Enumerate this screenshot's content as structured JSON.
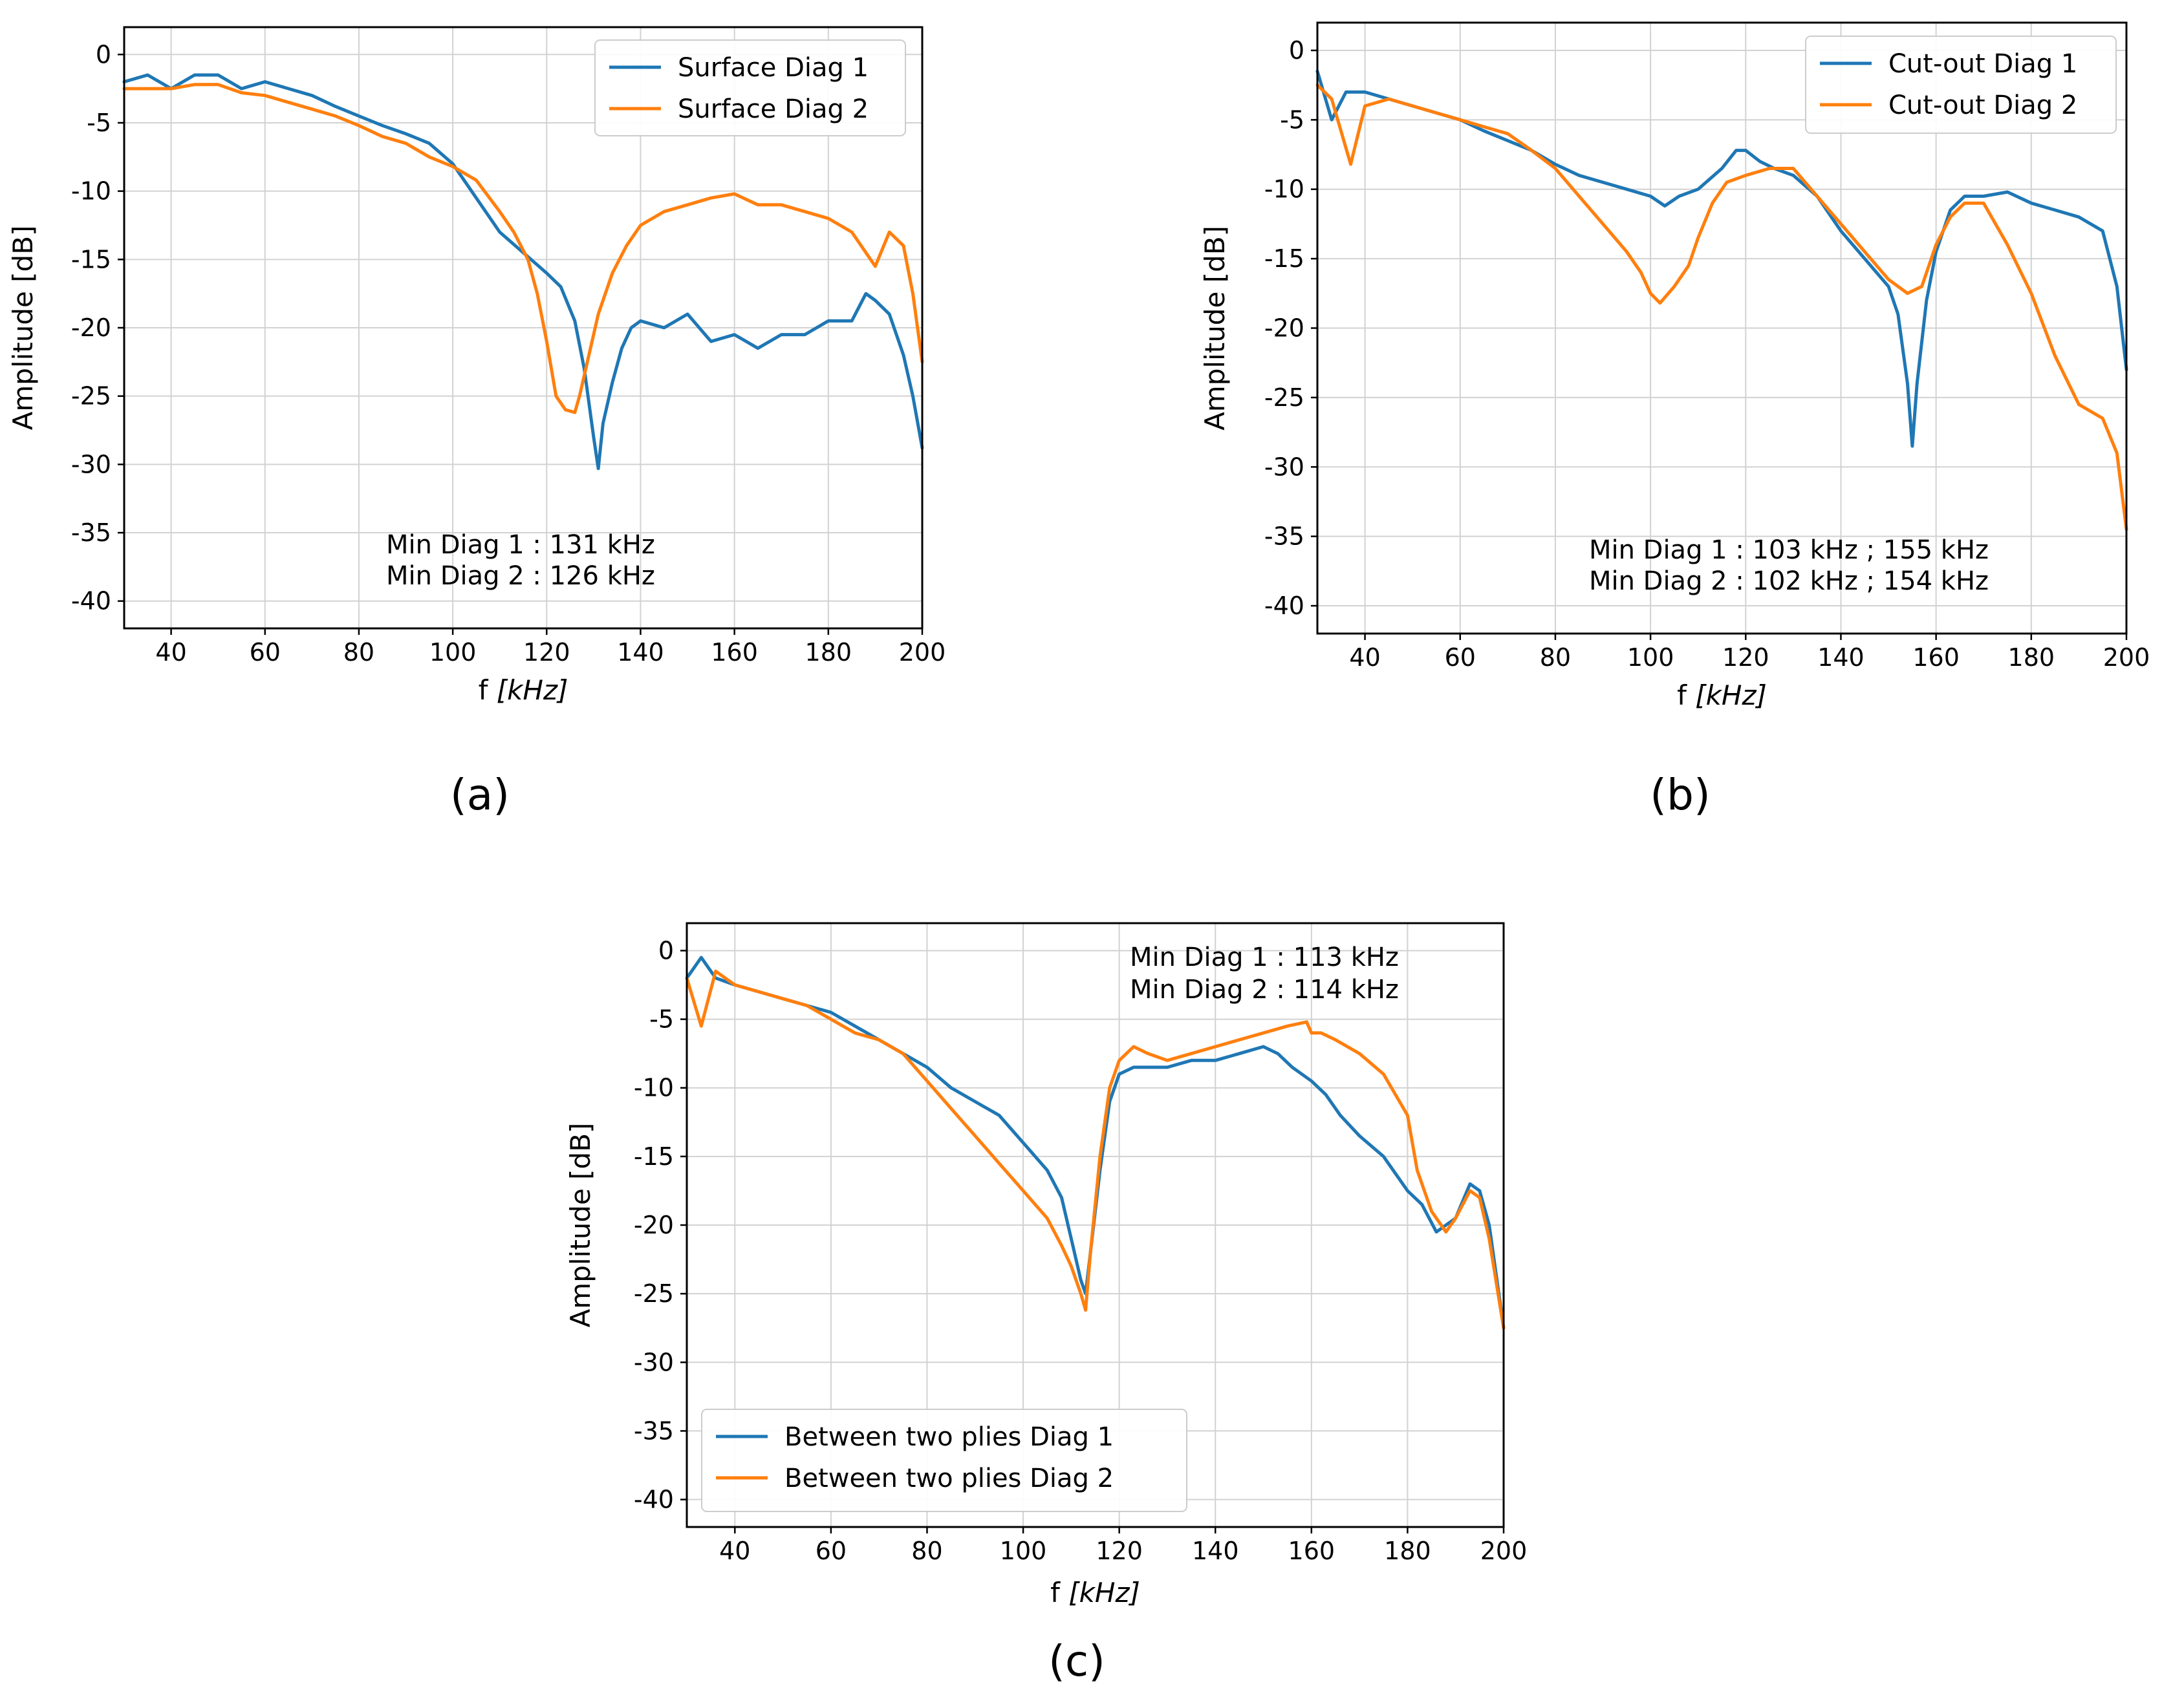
{
  "chart_data": [
    {
      "panel": "a",
      "caption_label": "(a)",
      "type": "line",
      "xlabel_prefix": "f ",
      "xlabel_unit": "[kHz]",
      "ylabel": "Amplitude [dB]",
      "xlim": [
        30,
        200
      ],
      "ylim": [
        -42,
        2
      ],
      "xticks": [
        40,
        60,
        80,
        100,
        120,
        140,
        160,
        180,
        200
      ],
      "yticks": [
        0,
        -5,
        -10,
        -15,
        -20,
        -25,
        -30,
        -35,
        -40
      ],
      "grid": true,
      "legend_position": "top-right",
      "annotations": [
        "Min Diag 1 : 131 kHz",
        "Min Diag 2 : 126 kHz"
      ],
      "series": [
        {
          "name": "Surface Diag 1",
          "color": "#1f77b4",
          "x": [
            30,
            35,
            40,
            45,
            50,
            55,
            60,
            65,
            70,
            75,
            80,
            85,
            90,
            95,
            100,
            103,
            106,
            110,
            115,
            120,
            123,
            126,
            128,
            130,
            131,
            132,
            134,
            136,
            138,
            140,
            145,
            150,
            155,
            160,
            165,
            170,
            175,
            180,
            185,
            188,
            190,
            193,
            196,
            198,
            200
          ],
          "y": [
            -2,
            -1.5,
            -2.5,
            -1.5,
            -1.5,
            -2.5,
            -2,
            -2.5,
            -3,
            -3.8,
            -4.5,
            -5.2,
            -5.8,
            -6.5,
            -8,
            -9.5,
            -11,
            -13,
            -14.5,
            -16,
            -17,
            -19.5,
            -23,
            -28,
            -30.3,
            -27,
            -24,
            -21.5,
            -20,
            -19.5,
            -20,
            -19,
            -21,
            -20.5,
            -21.5,
            -20.5,
            -20.5,
            -19.5,
            -19.5,
            -17.5,
            -18,
            -19,
            -22,
            -25,
            -28.8
          ]
        },
        {
          "name": "Surface Diag 2",
          "color": "#ff7f0e",
          "x": [
            30,
            35,
            40,
            45,
            50,
            55,
            60,
            65,
            70,
            75,
            80,
            85,
            90,
            95,
            100,
            105,
            110,
            113,
            116,
            118,
            120,
            122,
            124,
            126,
            127,
            129,
            131,
            134,
            137,
            140,
            145,
            150,
            155,
            160,
            165,
            170,
            175,
            180,
            185,
            188,
            190,
            193,
            196,
            198,
            200
          ],
          "y": [
            -2.5,
            -2.5,
            -2.5,
            -2.2,
            -2.2,
            -2.8,
            -3,
            -3.5,
            -4,
            -4.5,
            -5.2,
            -6,
            -6.5,
            -7.5,
            -8.2,
            -9.2,
            -11.5,
            -13,
            -15,
            -17.5,
            -21,
            -25,
            -26,
            -26.2,
            -25,
            -22,
            -19,
            -16,
            -14,
            -12.5,
            -11.5,
            -11,
            -10.5,
            -10.2,
            -11,
            -11,
            -11.5,
            -12,
            -13,
            -14.5,
            -15.5,
            -13,
            -14,
            -17.5,
            -22.5
          ]
        }
      ]
    },
    {
      "panel": "b",
      "caption_label": "(b)",
      "type": "line",
      "xlabel_prefix": "f ",
      "xlabel_unit": "[kHz]",
      "ylabel": "Amplitude [dB]",
      "xlim": [
        30,
        200
      ],
      "ylim": [
        -42,
        2
      ],
      "xticks": [
        40,
        60,
        80,
        100,
        120,
        140,
        160,
        180,
        200
      ],
      "yticks": [
        0,
        -5,
        -10,
        -15,
        -20,
        -25,
        -30,
        -35,
        -40
      ],
      "grid": true,
      "legend_position": "top-right",
      "annotations": [
        "Min Diag 1 : 103 kHz ; 155 kHz",
        "Min Diag 2 : 102 kHz ; 154 kHz"
      ],
      "series": [
        {
          "name": "Cut-out Diag 1",
          "color": "#1f77b4",
          "x": [
            30,
            33,
            36,
            40,
            45,
            50,
            55,
            60,
            65,
            70,
            75,
            80,
            85,
            90,
            95,
            100,
            103,
            106,
            110,
            115,
            118,
            120,
            123,
            126,
            130,
            135,
            140,
            145,
            150,
            152,
            154,
            155,
            156,
            158,
            160,
            163,
            166,
            170,
            175,
            180,
            185,
            190,
            195,
            198,
            200
          ],
          "y": [
            -1.5,
            -5,
            -3,
            -3,
            -3.5,
            -4,
            -4.5,
            -5,
            -5.8,
            -6.5,
            -7.2,
            -8.2,
            -9,
            -9.5,
            -10,
            -10.5,
            -11.2,
            -10.5,
            -10,
            -8.5,
            -7.2,
            -7.2,
            -8,
            -8.5,
            -9,
            -10.5,
            -13,
            -15,
            -17,
            -19,
            -24,
            -28.5,
            -24,
            -18,
            -14.5,
            -11.5,
            -10.5,
            -10.5,
            -10.2,
            -11,
            -11.5,
            -12,
            -13,
            -17,
            -23
          ]
        },
        {
          "name": "Cut-out Diag 2",
          "color": "#ff7f0e",
          "x": [
            30,
            33,
            37,
            40,
            45,
            50,
            55,
            60,
            65,
            70,
            75,
            80,
            85,
            90,
            95,
            98,
            100,
            102,
            105,
            108,
            110,
            113,
            116,
            120,
            125,
            130,
            135,
            140,
            145,
            150,
            154,
            157,
            160,
            163,
            166,
            170,
            175,
            180,
            185,
            190,
            195,
            198,
            200
          ],
          "y": [
            -2.5,
            -3.5,
            -8.2,
            -4,
            -3.5,
            -4,
            -4.5,
            -5,
            -5.5,
            -6,
            -7.2,
            -8.5,
            -10.5,
            -12.5,
            -14.5,
            -16,
            -17.5,
            -18.2,
            -17,
            -15.5,
            -13.5,
            -11,
            -9.5,
            -9,
            -8.5,
            -8.5,
            -10.5,
            -12.5,
            -14.5,
            -16.5,
            -17.5,
            -17,
            -14,
            -12,
            -11,
            -11,
            -14,
            -17.5,
            -22,
            -25.5,
            -26.5,
            -29,
            -34.5
          ]
        }
      ]
    },
    {
      "panel": "c",
      "caption_label": "(c)",
      "type": "line",
      "xlabel_prefix": "f ",
      "xlabel_unit": "[kHz]",
      "ylabel": "Amplitude [dB]",
      "xlim": [
        30,
        200
      ],
      "ylim": [
        -42,
        2
      ],
      "xticks": [
        40,
        60,
        80,
        100,
        120,
        140,
        160,
        180,
        200
      ],
      "yticks": [
        0,
        -5,
        -10,
        -15,
        -20,
        -25,
        -30,
        -35,
        -40
      ],
      "grid": true,
      "legend_position": "bottom-left",
      "annotations": [
        "Min Diag 1 : 113 kHz",
        "Min Diag 2 : 114 kHz"
      ],
      "series": [
        {
          "name": "Between two plies Diag 1",
          "color": "#1f77b4",
          "x": [
            30,
            33,
            36,
            40,
            45,
            50,
            55,
            60,
            65,
            70,
            75,
            80,
            85,
            90,
            95,
            100,
            105,
            108,
            110,
            112,
            113,
            114,
            116,
            118,
            120,
            123,
            126,
            130,
            135,
            140,
            145,
            150,
            153,
            156,
            160,
            163,
            166,
            170,
            175,
            180,
            183,
            186,
            190,
            193,
            195,
            197,
            200
          ],
          "y": [
            -2,
            -0.5,
            -2,
            -2.5,
            -3,
            -3.5,
            -4,
            -4.5,
            -5.5,
            -6.5,
            -7.5,
            -8.5,
            -10,
            -11,
            -12,
            -14,
            -16,
            -18,
            -21,
            -24,
            -25,
            -22,
            -16,
            -11,
            -9,
            -8.5,
            -8.5,
            -8.5,
            -8,
            -8,
            -7.5,
            -7,
            -7.5,
            -8.5,
            -9.5,
            -10.5,
            -12,
            -13.5,
            -15,
            -17.5,
            -18.5,
            -20.5,
            -19.5,
            -17,
            -17.5,
            -20,
            -27.5
          ]
        },
        {
          "name": "Between two plies Diag 2",
          "color": "#ff7f0e",
          "x": [
            30,
            33,
            36,
            40,
            45,
            50,
            55,
            60,
            65,
            70,
            75,
            80,
            85,
            90,
            95,
            100,
            105,
            108,
            110,
            112,
            113,
            114,
            116,
            118,
            120,
            123,
            126,
            130,
            135,
            140,
            145,
            150,
            155,
            159,
            160,
            162,
            165,
            170,
            175,
            180,
            182,
            185,
            188,
            190,
            193,
            195,
            197,
            200
          ],
          "y": [
            -2,
            -5.5,
            -1.5,
            -2.5,
            -3,
            -3.5,
            -4,
            -5,
            -6,
            -6.5,
            -7.5,
            -9.5,
            -11.5,
            -13.5,
            -15.5,
            -17.5,
            -19.5,
            -21.5,
            -23,
            -25,
            -26.2,
            -22,
            -15,
            -10,
            -8,
            -7,
            -7.5,
            -8,
            -7.5,
            -7,
            -6.5,
            -6,
            -5.5,
            -5.2,
            -6,
            -6,
            -6.5,
            -7.5,
            -9,
            -12,
            -16,
            -19,
            -20.5,
            -19.5,
            -17.5,
            -18,
            -21,
            -27.5
          ]
        }
      ]
    }
  ]
}
